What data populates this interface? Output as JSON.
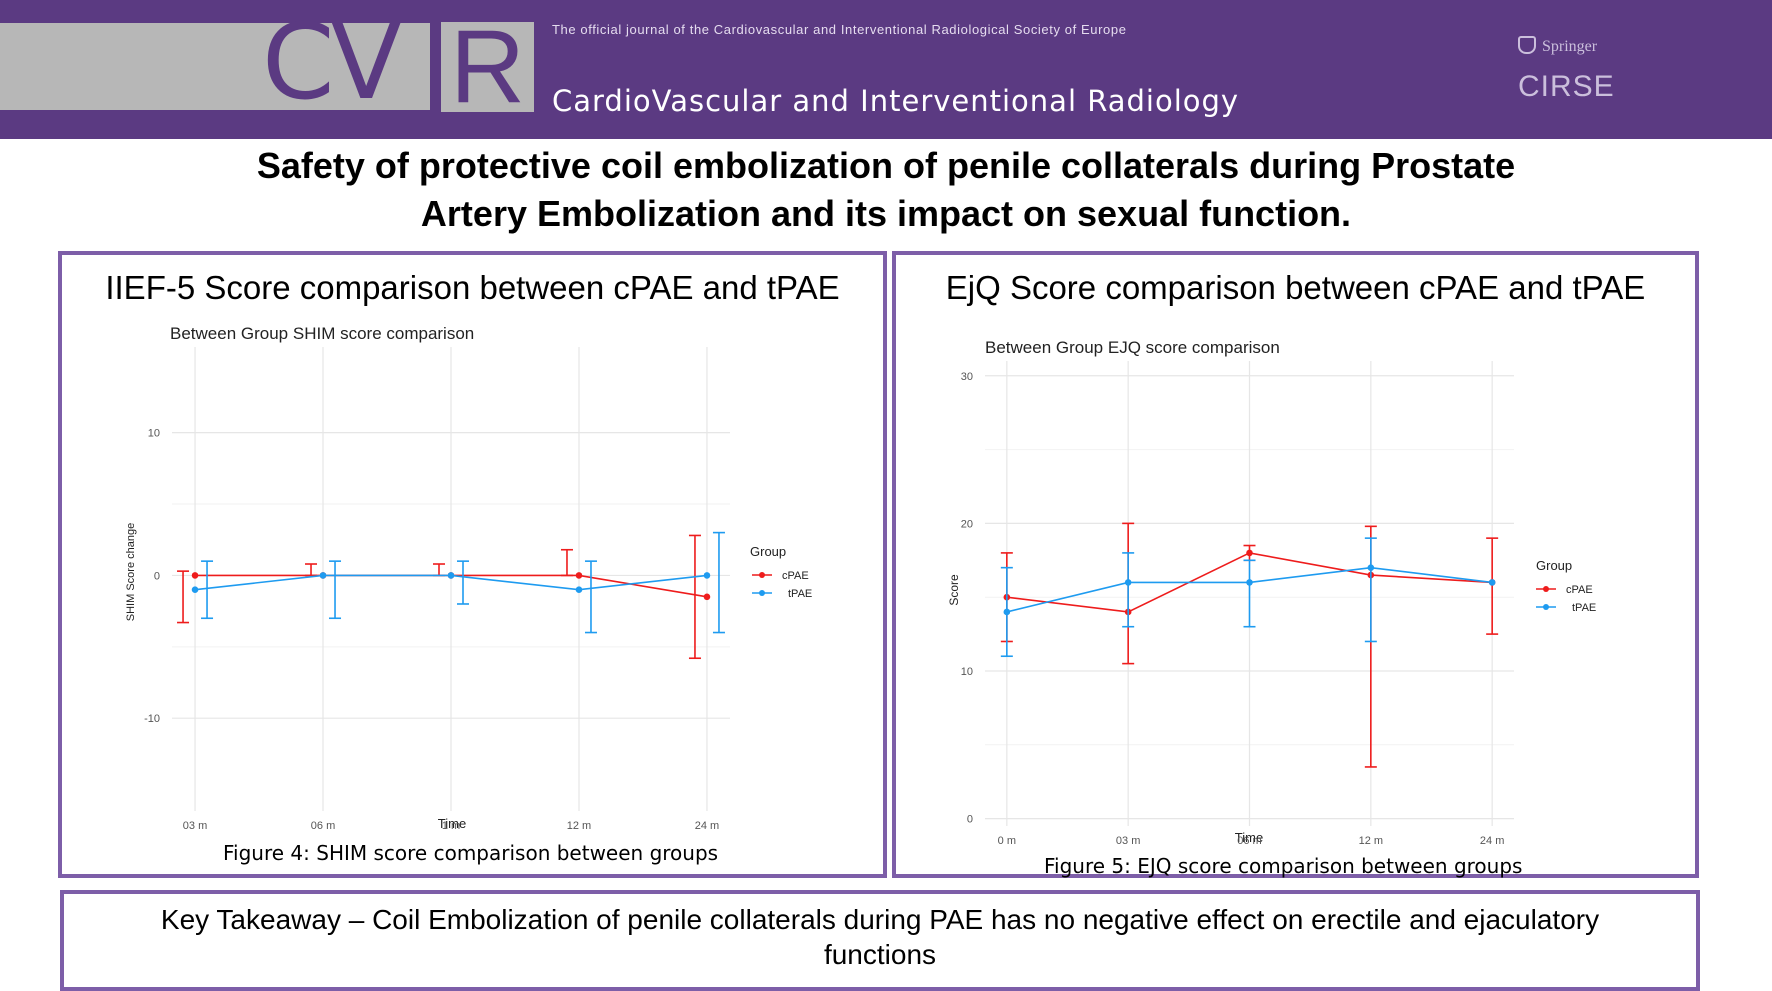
{
  "banner": {
    "logo_cv": "CV",
    "logo_r": "R",
    "tagline": "The official journal of the  Cardiovascular and Interventional Radiological Society of Europe",
    "journal_name": "CardioVascular and Interventional Radiology",
    "publisher": "Springer",
    "society": "CIRSE",
    "colors": {
      "purple": "#5b3a82",
      "grey": "#b7b7b7",
      "border": "#7d5ea8"
    }
  },
  "title": {
    "line1": "Safety of protective coil embolization of penile collaterals during Prostate",
    "line2": "Artery Embolization and its impact on sexual function."
  },
  "panels": {
    "left": {
      "heading": "IIEF-5 Score comparison between cPAE and tPAE",
      "caption": "Figure 4: SHIM score comparison between groups"
    },
    "right": {
      "heading": "EjQ Score comparison between cPAE and tPAE",
      "caption": "Figure 5: EJQ score comparison between groups"
    }
  },
  "takeaway": {
    "line1": "Key Takeaway – Coil Embolization of penile collaterals during PAE has no negative effect on erectile and ejaculatory",
    "line2": "functions"
  },
  "chart_data": [
    {
      "type": "line",
      "title": "Between Group SHIM score comparison",
      "xlabel": "Time",
      "ylabel": "SHIM Score change",
      "categories": [
        "03 m",
        "06 m",
        "1 m",
        "12 m",
        "24 m"
      ],
      "yticks": [
        "10",
        "0",
        "-10"
      ],
      "ytick_values": [
        10,
        0,
        -10
      ],
      "ylim": [
        -16.5,
        16
      ],
      "legend_title": "Group",
      "legend_position": "right",
      "grid": true,
      "series": [
        {
          "name": "cPAE",
          "color": "#ee1c1c",
          "values": [
            0,
            0,
            0,
            0,
            -1.5
          ],
          "lower": [
            -3.3,
            0,
            0,
            0,
            -5.8
          ],
          "upper": [
            0.3,
            0.8,
            0.8,
            1.8,
            2.8
          ]
        },
        {
          "name": "tPAE",
          "color": "#1e9bf0",
          "values": [
            -1,
            0,
            0,
            -1,
            0
          ],
          "lower": [
            -3,
            -3,
            -2,
            -4,
            -4
          ],
          "upper": [
            1,
            1,
            1,
            1,
            3
          ]
        }
      ]
    },
    {
      "type": "line",
      "title": "Between Group EJQ score comparison",
      "xlabel": "Time",
      "ylabel": "Score",
      "categories": [
        "0 m",
        "03 m",
        "06 m",
        "12 m",
        "24 m"
      ],
      "yticks": [
        "30",
        "20",
        "10",
        "0"
      ],
      "ytick_values": [
        30,
        20,
        10,
        0
      ],
      "ylim": [
        -0.5,
        31
      ],
      "legend_title": "Group",
      "legend_position": "right",
      "grid": true,
      "series": [
        {
          "name": "cPAE",
          "color": "#ee1c1c",
          "values": [
            15,
            14,
            18,
            16.5,
            16
          ],
          "lower": [
            12,
            10.5,
            17.5,
            3.5,
            12.5
          ],
          "upper": [
            18,
            20,
            18.5,
            19.8,
            19
          ]
        },
        {
          "name": "tPAE",
          "color": "#1e9bf0",
          "values": [
            14,
            16,
            16,
            17,
            16
          ],
          "lower": [
            11,
            13,
            13,
            12,
            16
          ],
          "upper": [
            17,
            18,
            17.5,
            19,
            16
          ]
        }
      ]
    }
  ]
}
